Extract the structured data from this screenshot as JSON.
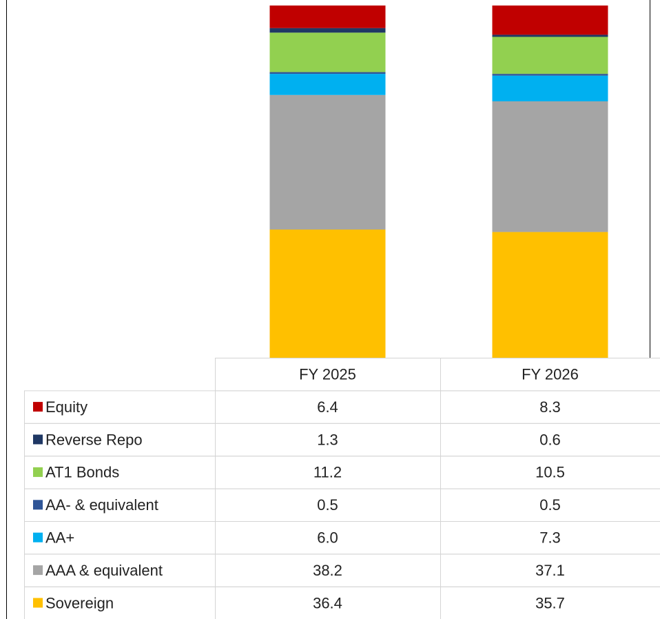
{
  "chart_data": {
    "type": "stacked-bar",
    "categories": [
      "FY 2025",
      "FY 2026"
    ],
    "ylim": [
      0,
      100
    ],
    "series": [
      {
        "name": "Equity",
        "color": "#c00000",
        "values": [
          6.4,
          8.3
        ]
      },
      {
        "name": "Reverse Repo",
        "color": "#1f3864",
        "values": [
          1.3,
          0.6
        ]
      },
      {
        "name": "AT1 Bonds",
        "color": "#92d050",
        "values": [
          11.2,
          10.5
        ]
      },
      {
        "name": "AA- & equivalent",
        "color": "#2f5597",
        "values": [
          0.5,
          0.5
        ]
      },
      {
        "name": "AA+",
        "color": "#00b0f0",
        "values": [
          6.0,
          7.3
        ],
        "value_labels": [
          "6.0",
          "7.3"
        ]
      },
      {
        "name": "AAA & equivalent",
        "color": "#a5a5a5",
        "values": [
          38.2,
          37.1
        ]
      },
      {
        "name": "Sovereign",
        "color": "#ffc000",
        "values": [
          36.4,
          35.7
        ]
      }
    ]
  }
}
